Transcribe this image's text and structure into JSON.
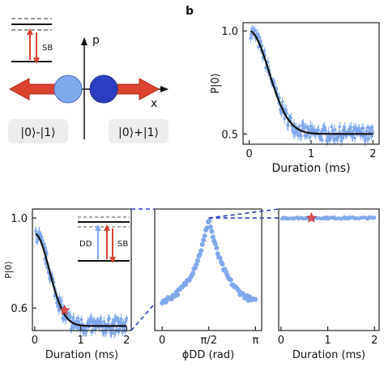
{
  "labels": {
    "panel_b": "b",
    "p_axis": "p",
    "x_axis": "x",
    "sb": "SB",
    "dd": "DD",
    "state_minus": "|0⟩-|1⟩",
    "state_plus": "|0⟩+|1⟩"
  },
  "colors": {
    "light_blue": "#7fa9ec",
    "dark_blue": "#2a3fbf",
    "red_arrow": "#d9432f",
    "fit_line": "#111111",
    "star": "#e05050"
  },
  "chart_data": [
    {
      "id": "b",
      "type": "scatter",
      "xlabel": "Duration (ms)",
      "ylabel": "P|0⟩",
      "xlim": [
        -0.1,
        2.1
      ],
      "ylim": [
        0.45,
        1.04
      ],
      "xticks": [
        "0",
        "1",
        "2"
      ],
      "yticks": [
        "0.5",
        "1.0"
      ],
      "xtick_values": [
        0,
        1,
        2
      ],
      "ytick_values": [
        0.5,
        1.0
      ],
      "fit": {
        "model": "0.5 + 0.5*exp(-(t/0.45)^2)",
        "tau_ms": 0.45,
        "offset": 0.5
      },
      "noise_amplitude": 0.035
    },
    {
      "id": "d",
      "type": "scatter",
      "xlabel": "Duration (ms)",
      "ylabel": "P|0⟩",
      "xlim": [
        -0.05,
        2.1
      ],
      "ylim": [
        0.5,
        1.04
      ],
      "xticks": [
        "0",
        "1",
        "2"
      ],
      "yticks": [
        "0.6",
        "1.0"
      ],
      "xtick_values": [
        0,
        1,
        2
      ],
      "ytick_values": [
        0.6,
        1.0
      ],
      "fit": {
        "model": "0.52 + 0.41*exp(-(t/0.45)^2)",
        "tau_ms": 0.45,
        "offset": 0.52
      },
      "highlight": {
        "x": 0.65,
        "y": 0.59
      },
      "noise_amplitude": 0.035
    },
    {
      "id": "e",
      "type": "scatter",
      "xlabel": "ϕDD (rad)",
      "xticks": [
        "0",
        "π/2",
        "π"
      ],
      "xtick_values": [
        0,
        1.5708,
        3.1416
      ],
      "xlim": [
        -0.25,
        3.35
      ],
      "ylim": [
        0.5,
        1.04
      ],
      "peak": {
        "x": 1.5708,
        "y": 1.0
      },
      "baseline": 0.6
    },
    {
      "id": "f",
      "type": "scatter",
      "xlabel": "Duration (ms)",
      "xticks": [
        "0",
        "1",
        "2"
      ],
      "xtick_values": [
        0,
        1,
        2
      ],
      "xlim": [
        -0.05,
        2.1
      ],
      "ylim": [
        0.5,
        1.04
      ],
      "level": 1.0,
      "highlight": {
        "x": 0.65,
        "y": 1.0
      }
    }
  ]
}
